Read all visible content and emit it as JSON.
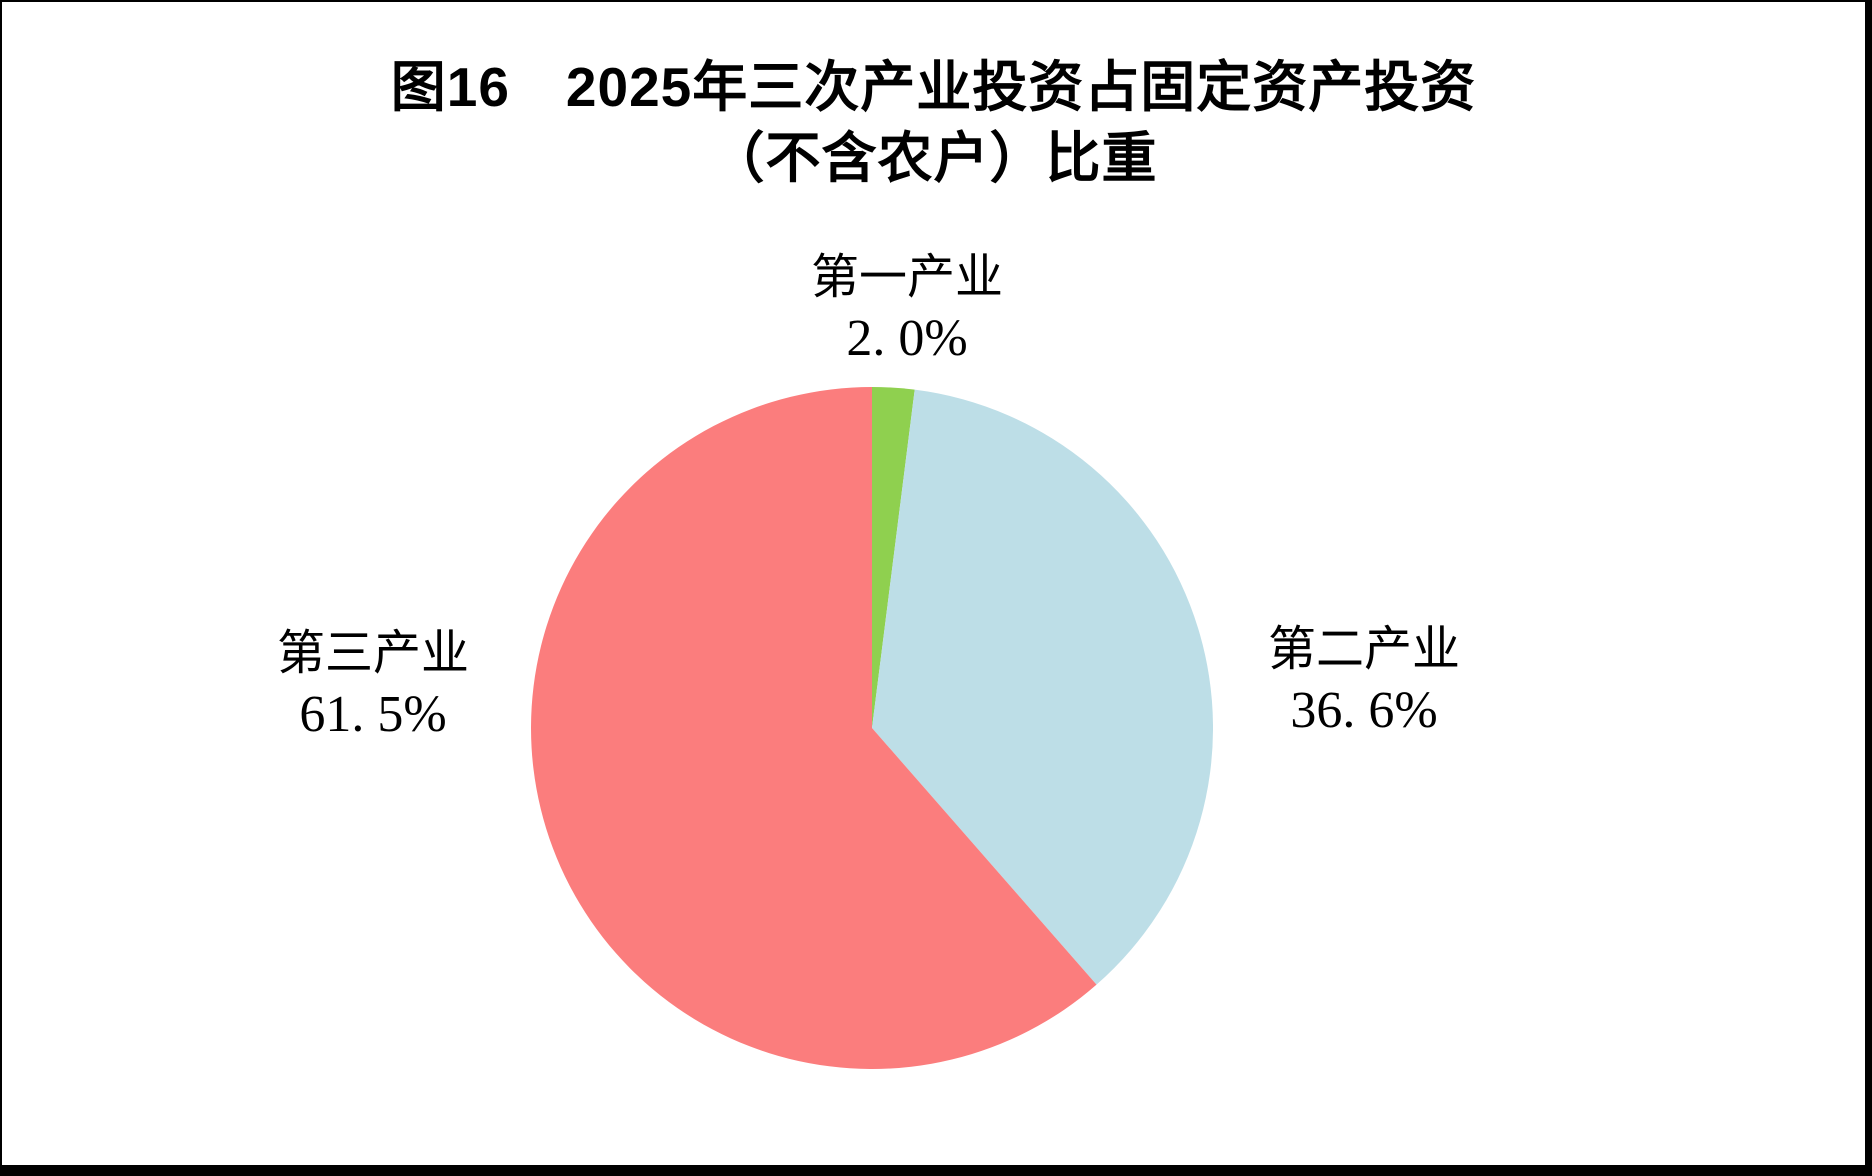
{
  "title": {
    "line1": "图16　2025年三次产业投资占固定资产投资",
    "line2": "（不含农户）比重"
  },
  "chart_data": {
    "type": "pie",
    "title": "图16 2025年三次产业投资占固定资产投资（不含农户）比重",
    "start_angle_deg": 0,
    "direction": "clockwise",
    "unit": "%",
    "slices": [
      {
        "label": "第一产业",
        "value": 2.0,
        "display_value": "2. 0%",
        "color": "#8FD04F"
      },
      {
        "label": "第二产业",
        "value": 36.6,
        "display_value": "36. 6%",
        "color": "#BDDEE7"
      },
      {
        "label": "第三产业",
        "value": 61.5,
        "display_value": "61. 5%",
        "color": "#FB7D7D"
      }
    ],
    "legend_position": "labels-beside-slices",
    "background": "#ffffff",
    "frame_color": "#000000"
  }
}
